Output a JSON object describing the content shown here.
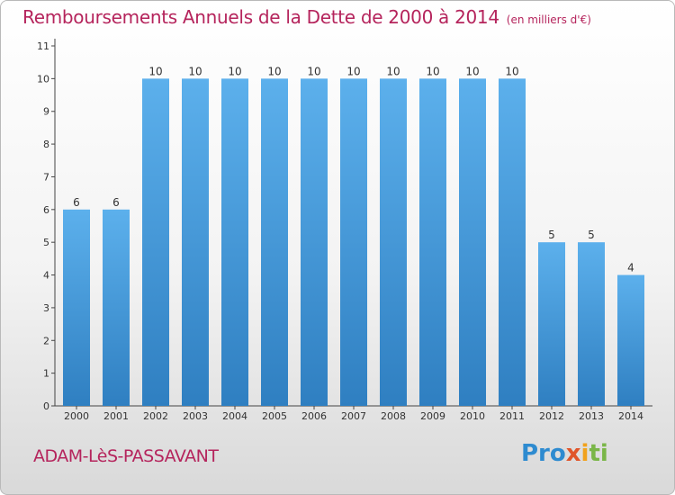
{
  "title": "Remboursements Annuels de la Dette de 2000 à 2014",
  "subtitle": "(en milliers d'€)",
  "place": "ADAM-LèS-PASSAVANT",
  "logo": [
    "Pro",
    "x",
    "i",
    "ti"
  ],
  "chart_data": {
    "type": "bar",
    "categories": [
      "2000",
      "2001",
      "2002",
      "2003",
      "2004",
      "2005",
      "2006",
      "2007",
      "2008",
      "2009",
      "2010",
      "2011",
      "2012",
      "2013",
      "2014"
    ],
    "values": [
      6,
      6,
      10,
      10,
      10,
      10,
      10,
      10,
      10,
      10,
      10,
      10,
      5,
      5,
      4
    ],
    "data_labels": [
      "6",
      "6",
      "10",
      "10",
      "10",
      "10",
      "10",
      "10",
      "10",
      "10",
      "10",
      "10",
      "5",
      "5",
      "4"
    ],
    "yticks": [
      0,
      1,
      2,
      3,
      4,
      5,
      6,
      7,
      8,
      9,
      10,
      11
    ],
    "ylim": [
      0,
      11
    ],
    "grid": false,
    "bar_color": "#4a9ad9"
  }
}
